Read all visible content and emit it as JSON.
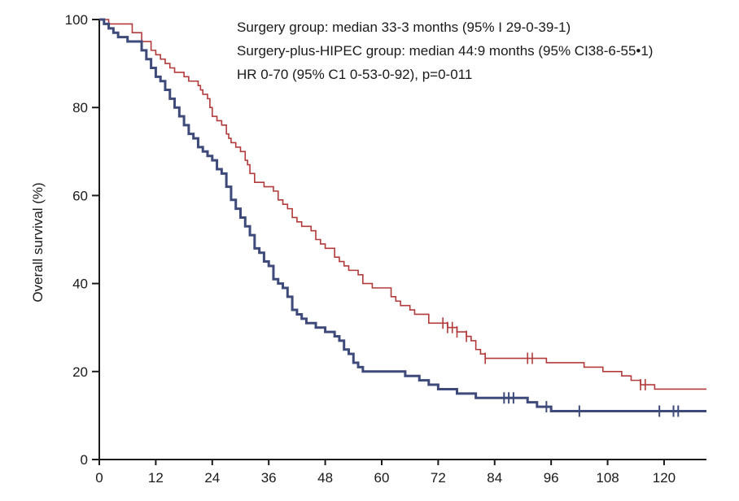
{
  "chart_data": {
    "type": "line",
    "title": "",
    "xlabel": "",
    "ylabel": "Overall survival (%)",
    "xlim": [
      0,
      129
    ],
    "ylim": [
      0,
      100
    ],
    "x_ticks": [
      0,
      12,
      24,
      36,
      48,
      60,
      72,
      84,
      96,
      108,
      120
    ],
    "y_ticks": [
      0,
      20,
      40,
      60,
      80,
      100
    ],
    "grid": false,
    "step": true,
    "annotations": [
      "Surgery group: median 33-3 months (95% I 29-0-39-1)",
      "Surgery-plus-HIPEC group: median 44:9 months (95% CI38-6-55•1)",
      "HR 0-70 (95% C1 0-53-0-92), p=0-011"
    ],
    "series": [
      {
        "color": "#b23a3a",
        "stroke_width": 1.6,
        "x": [
          0,
          2,
          7,
          9,
          11,
          12,
          13,
          14,
          15,
          16,
          18,
          19,
          21,
          21.5,
          22,
          23,
          23.5,
          24,
          25,
          26,
          27,
          27.5,
          28,
          29,
          30,
          31,
          31.5,
          32,
          33,
          35,
          37,
          38,
          39,
          40,
          41,
          42,
          43,
          45,
          46,
          47,
          48,
          50,
          51,
          52,
          53,
          55,
          56,
          58,
          62,
          63,
          64,
          66,
          67,
          70,
          74,
          76,
          78,
          79,
          80,
          81,
          82,
          91,
          95,
          100,
          103,
          107,
          111,
          113,
          115,
          118,
          129
        ],
        "y": [
          100,
          99,
          97,
          95,
          93,
          92,
          91,
          90,
          89,
          88,
          87,
          86,
          85,
          84,
          83,
          82,
          80,
          78,
          77,
          76,
          74,
          73,
          72,
          71,
          70,
          68,
          67,
          65,
          63,
          62,
          61,
          59,
          58,
          57,
          55,
          54,
          53,
          52,
          50,
          49,
          48,
          46,
          45,
          44,
          43,
          42,
          40,
          39,
          37,
          36,
          35,
          34,
          33,
          31,
          30,
          29,
          28,
          27,
          25,
          24,
          23,
          23,
          22,
          22,
          21,
          20,
          19,
          18,
          17,
          16,
          16
        ],
        "censor_x": [
          73,
          74,
          75,
          76,
          78,
          82,
          91,
          92,
          115,
          116
        ]
      },
      {
        "color": "#3d4a7a",
        "stroke_width": 3,
        "x": [
          0,
          1,
          2,
          3,
          4,
          6,
          9,
          10,
          11,
          12,
          13,
          14,
          15,
          16,
          17,
          18,
          19,
          20,
          21,
          22,
          23,
          24,
          25,
          26,
          27,
          28,
          29,
          30,
          31,
          32,
          33,
          34,
          35,
          36,
          37,
          38,
          39,
          40,
          41,
          42,
          43,
          44,
          46,
          48,
          50,
          51,
          52,
          53,
          54,
          55,
          56,
          57,
          65,
          68,
          70,
          72,
          76,
          80,
          84,
          88,
          91,
          93,
          95,
          96,
          129
        ],
        "y": [
          100,
          99,
          98,
          97,
          96,
          95,
          93,
          91,
          89,
          87,
          86,
          84,
          82,
          80,
          78,
          76,
          74,
          73,
          71,
          70,
          69,
          68,
          66,
          65,
          62,
          59,
          57,
          55,
          53,
          51,
          48,
          47,
          45,
          44,
          41,
          40,
          39,
          37,
          34,
          33,
          32,
          31,
          30,
          29,
          28,
          27,
          25,
          24,
          22,
          21,
          20,
          20,
          19,
          18,
          17,
          16,
          15,
          14,
          14,
          14,
          13,
          12,
          12,
          11,
          11
        ],
        "censor_x": [
          86,
          87,
          88,
          95,
          102,
          119,
          122,
          123
        ]
      }
    ]
  }
}
